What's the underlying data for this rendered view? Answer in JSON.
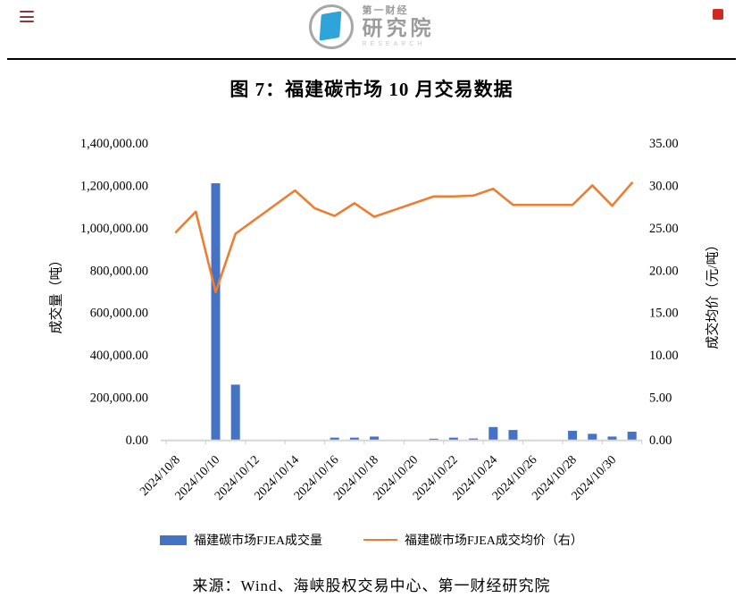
{
  "header": {
    "logo": {
      "line1": "第一财经",
      "line2": "研究院",
      "line3": "RESEARCH"
    },
    "brand_blue": "#2ea4da",
    "brand_gray": "#9b9b9b"
  },
  "title": "图 7：福建碳市场 10 月交易数据",
  "chart_data": {
    "type": "bar+line dual-axis",
    "grid": false,
    "legend_position": "bottom",
    "categories": [
      "2024/10/8",
      "2024/10/9",
      "2024/10/10",
      "2024/10/11",
      "2024/10/12",
      "2024/10/13",
      "2024/10/14",
      "2024/10/15",
      "2024/10/16",
      "2024/10/17",
      "2024/10/18",
      "2024/10/19",
      "2024/10/20",
      "2024/10/21",
      "2024/10/22",
      "2024/10/23",
      "2024/10/24",
      "2024/10/25",
      "2024/10/26",
      "2024/10/27",
      "2024/10/28",
      "2024/10/29",
      "2024/10/30",
      "2024/10/31"
    ],
    "x_tick_labels": [
      "2024/10/8",
      "2024/10/10",
      "2024/10/12",
      "2024/10/14",
      "2024/10/16",
      "2024/10/18",
      "2024/10/20",
      "2024/10/22",
      "2024/10/24",
      "2024/10/26",
      "2024/10/28",
      "2024/10/30"
    ],
    "series": [
      {
        "name": "福建碳市场FJEA成交量",
        "type": "bar",
        "axis": "left",
        "color": "#4472c4",
        "values": [
          0,
          0,
          1210000,
          260000,
          0,
          0,
          0,
          0,
          10000,
          10000,
          15000,
          0,
          0,
          5000,
          10000,
          6000,
          60000,
          46000,
          0,
          0,
          42000,
          28000,
          15000,
          38000
        ]
      },
      {
        "name": "福建碳市场FJEA成交均价（右）",
        "type": "line",
        "axis": "right",
        "color": "#ed7d31",
        "values": [
          24.5,
          26.9,
          17.4,
          24.3,
          26.0,
          27.7,
          29.4,
          27.3,
          26.4,
          27.9,
          26.3,
          27.1,
          27.9,
          28.7,
          28.7,
          28.8,
          29.6,
          27.7,
          27.7,
          27.7,
          27.7,
          30.0,
          27.6,
          30.3
        ]
      }
    ],
    "left_axis": {
      "title": "成交量（吨）",
      "min": 0,
      "max": 1400000,
      "step": 200000,
      "tick_labels": [
        "0.00",
        "200,000.00",
        "400,000.00",
        "600,000.00",
        "800,000.00",
        "1,000,000.00",
        "1,200,000.00",
        "1,400,000.00"
      ]
    },
    "right_axis": {
      "title": "成交均价（元/吨）",
      "min": 0,
      "max": 35,
      "step": 5,
      "tick_labels": [
        "0.00",
        "5.00",
        "10.00",
        "15.00",
        "20.00",
        "25.00",
        "30.00",
        "35.00"
      ]
    },
    "axis_line_color": "#d6d6d6"
  },
  "legend": {
    "volume_label": "福建碳市场FJEA成交量",
    "price_label": "福建碳市场FJEA成交均价（右）"
  },
  "source": "来源：Wind、海峡股权交易中心、第一财经研究院"
}
